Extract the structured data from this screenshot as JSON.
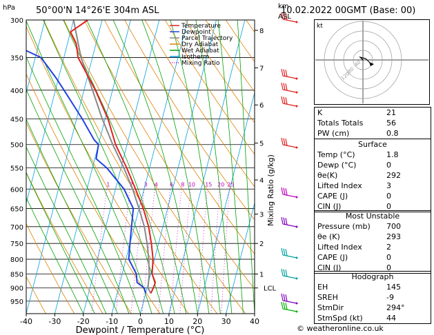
{
  "header": {
    "location": "50°00'N  14°26'E  304m  ASL",
    "datetime": "10.02.2022  00GMT  (Base: 00)",
    "pressure_unit": "hPa",
    "km_label": "km",
    "asl_label": "ASL"
  },
  "legend": [
    {
      "label": "Temperature",
      "color": "#e02020"
    },
    {
      "label": "Dewpoint",
      "color": "#2040e0"
    },
    {
      "label": "Parcel Trajectory",
      "color": "#888888"
    },
    {
      "label": "Dry Adiabat",
      "color": "#e08000"
    },
    {
      "label": "Wet Adiabat",
      "color": "#00a000"
    },
    {
      "label": "Isotherm",
      "color": "#00a0e0"
    },
    {
      "label": "Mixing Ratio",
      "color": "#c000c0"
    }
  ],
  "chart_data": {
    "type": "skew-t",
    "xlabel": "Dewpoint / Temperature (°C)",
    "ylabel_right": "Mixing Ratio (g/kg)",
    "x_ticks": [
      -40,
      -30,
      -20,
      -10,
      0,
      10,
      20,
      30,
      40
    ],
    "pressure_levels": [
      300,
      350,
      400,
      450,
      500,
      550,
      600,
      650,
      700,
      750,
      800,
      850,
      900,
      950
    ],
    "km_ticks": [
      {
        "label": "8",
        "p": 313
      },
      {
        "label": "7",
        "p": 365
      },
      {
        "label": "6",
        "p": 425
      },
      {
        "label": "5",
        "p": 497
      },
      {
        "label": "4",
        "p": 578
      },
      {
        "label": "3",
        "p": 665
      },
      {
        "label": "2",
        "p": 750
      },
      {
        "label": "1",
        "p": 850
      }
    ],
    "lcl_label": "LCL",
    "lcl_pressure": 900,
    "mixing_ratio_labels": [
      "1",
      "2",
      "3",
      "4",
      "6",
      "8",
      "10",
      "15",
      "20",
      "25"
    ],
    "temperature": [
      {
        "p": 300,
        "t": -45
      },
      {
        "p": 315,
        "t": -50
      },
      {
        "p": 330,
        "t": -47
      },
      {
        "p": 350,
        "t": -45
      },
      {
        "p": 400,
        "t": -36
      },
      {
        "p": 450,
        "t": -29
      },
      {
        "p": 500,
        "t": -24
      },
      {
        "p": 550,
        "t": -18
      },
      {
        "p": 600,
        "t": -13
      },
      {
        "p": 650,
        "t": -8.5
      },
      {
        "p": 700,
        "t": -5
      },
      {
        "p": 750,
        "t": -2.5
      },
      {
        "p": 800,
        "t": -0.5
      },
      {
        "p": 850,
        "t": 0.5
      },
      {
        "p": 880,
        "t": 2.4
      },
      {
        "p": 900,
        "t": 2.2
      },
      {
        "p": 920,
        "t": 1.8
      }
    ],
    "dewpoint": [
      {
        "p": 300,
        "t": -85
      },
      {
        "p": 320,
        "t": -86
      },
      {
        "p": 330,
        "t": -70
      },
      {
        "p": 350,
        "t": -58
      },
      {
        "p": 380,
        "t": -51
      },
      {
        "p": 400,
        "t": -47
      },
      {
        "p": 450,
        "t": -38
      },
      {
        "p": 490,
        "t": -32
      },
      {
        "p": 500,
        "t": -30
      },
      {
        "p": 530,
        "t": -29.5
      },
      {
        "p": 550,
        "t": -25
      },
      {
        "p": 600,
        "t": -17
      },
      {
        "p": 650,
        "t": -12
      },
      {
        "p": 700,
        "t": -11
      },
      {
        "p": 750,
        "t": -10
      },
      {
        "p": 800,
        "t": -9
      },
      {
        "p": 850,
        "t": -5
      },
      {
        "p": 880,
        "t": -4
      },
      {
        "p": 900,
        "t": -1
      },
      {
        "p": 920,
        "t": 0
      }
    ],
    "parcel": [
      {
        "p": 300,
        "t": -50
      },
      {
        "p": 350,
        "t": -44
      },
      {
        "p": 400,
        "t": -37
      },
      {
        "p": 450,
        "t": -31
      },
      {
        "p": 500,
        "t": -25
      },
      {
        "p": 550,
        "t": -19
      },
      {
        "p": 600,
        "t": -14
      },
      {
        "p": 650,
        "t": -10
      },
      {
        "p": 700,
        "t": -6.5
      },
      {
        "p": 750,
        "t": -4
      },
      {
        "p": 800,
        "t": -2
      },
      {
        "p": 850,
        "t": -0.5
      },
      {
        "p": 900,
        "t": 0.3
      },
      {
        "p": 920,
        "t": 1.8
      }
    ],
    "wind_barb_colors": [
      "#e02020",
      "#e02020",
      "#e02020",
      "#e02020",
      "#e02020",
      "#c000c0",
      "#8000c0",
      "#00a0a0",
      "#00a0a0",
      "#8000c0",
      "#00b000"
    ]
  },
  "hodograph": {
    "label": "kt",
    "ring_labels": [
      "40",
      "80",
      "120"
    ]
  },
  "indices": [
    {
      "label": "K",
      "value": "21"
    },
    {
      "label": "Totals Totals",
      "value": "56"
    },
    {
      "label": "PW (cm)",
      "value": "0.8"
    }
  ],
  "surface": {
    "title": "Surface",
    "rows": [
      {
        "label": "Temp (°C)",
        "value": "1.8"
      },
      {
        "label": "Dewp (°C)",
        "value": "0"
      },
      {
        "label": "θe(K)",
        "value": "292"
      },
      {
        "label": "Lifted Index",
        "value": "3"
      },
      {
        "label": "CAPE (J)",
        "value": "0"
      },
      {
        "label": "CIN (J)",
        "value": "0"
      }
    ]
  },
  "most_unstable": {
    "title": "Most Unstable",
    "rows": [
      {
        "label": "Pressure (mb)",
        "value": "700"
      },
      {
        "label": "θe (K)",
        "value": "293"
      },
      {
        "label": "Lifted Index",
        "value": "2"
      },
      {
        "label": "CAPE (J)",
        "value": "0"
      },
      {
        "label": "CIN (J)",
        "value": "0"
      }
    ]
  },
  "hodograph_stats": {
    "title": "Hodograph",
    "rows": [
      {
        "label": "EH",
        "value": "145"
      },
      {
        "label": "SREH",
        "value": "-9"
      },
      {
        "label": "StmDir",
        "value": "294°"
      },
      {
        "label": "StmSpd (kt)",
        "value": "44"
      }
    ]
  },
  "footer": "© weatheronline.co.uk"
}
